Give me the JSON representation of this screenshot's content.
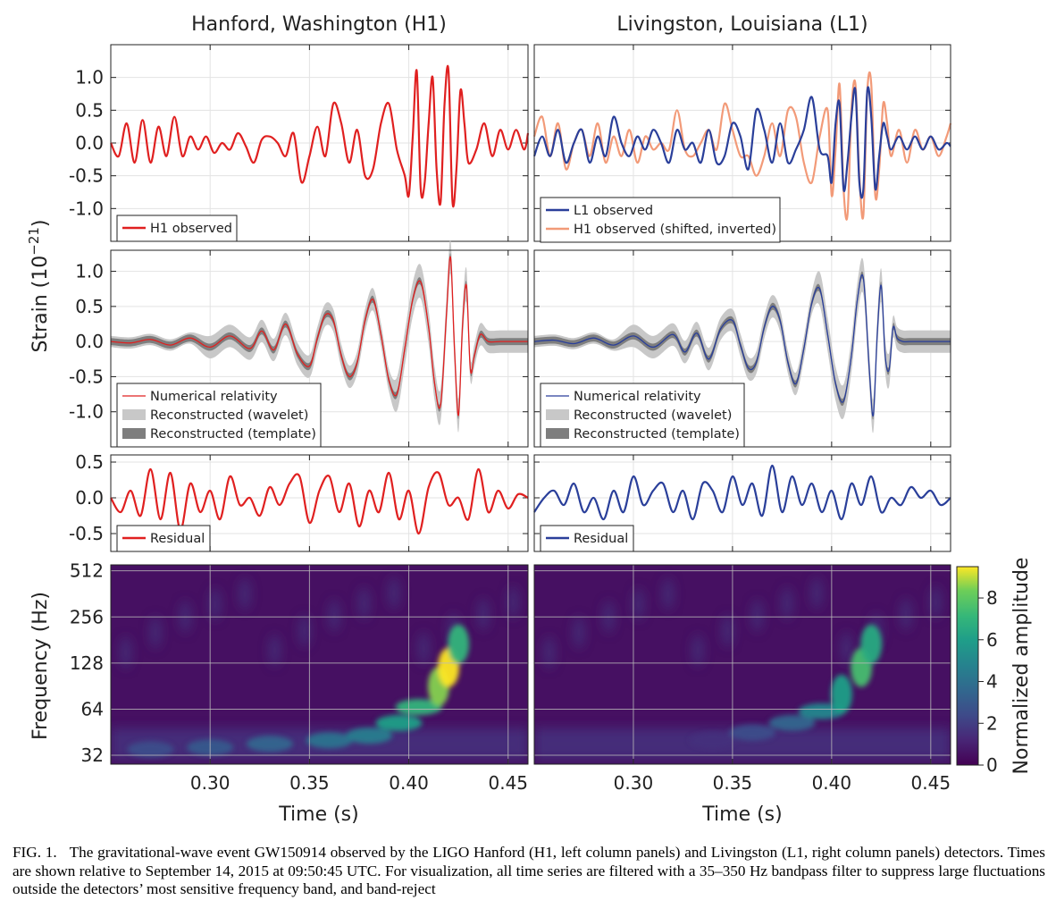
{
  "figure": {
    "column_titles": [
      "Hanford, Washington (H1)",
      "Livingston, Louisiana (L1)"
    ],
    "strain_ylabel": "Strain (10^-21)",
    "strain_ylabel_base": "Strain (10",
    "strain_ylabel_exp": "−21",
    "freq_ylabel": "Frequency (Hz)",
    "xlabel": "Time (s)",
    "colorbar_label": "Normalized amplitude",
    "colorbar_ticks": [
      "0",
      "2",
      "4",
      "6",
      "8"
    ],
    "colors": {
      "h1": "#e02020",
      "l1": "#2a3f9a",
      "h1_shifted": "#f29a78",
      "wavelet": "#c8c8c8",
      "template": "#7e7e7e"
    }
  },
  "chart_data": [
    {
      "type": "line",
      "panel": "H1 observed",
      "xlim": [
        0.25,
        0.46
      ],
      "ylim": [
        -1.5,
        1.5
      ],
      "yticks": [
        "1.0",
        "0.5",
        "0.0",
        "-0.5",
        "-1.0"
      ],
      "ytick_values": [
        1.0,
        0.5,
        0.0,
        -0.5,
        -1.0
      ],
      "series": [
        {
          "name": "H1 observed",
          "x": [
            0.25,
            0.254,
            0.258,
            0.262,
            0.266,
            0.27,
            0.274,
            0.278,
            0.282,
            0.286,
            0.29,
            0.294,
            0.298,
            0.302,
            0.306,
            0.31,
            0.314,
            0.318,
            0.322,
            0.326,
            0.33,
            0.334,
            0.338,
            0.342,
            0.346,
            0.35,
            0.354,
            0.358,
            0.362,
            0.366,
            0.37,
            0.374,
            0.378,
            0.382,
            0.386,
            0.39,
            0.394,
            0.398,
            0.4,
            0.402,
            0.404,
            0.406,
            0.408,
            0.41,
            0.412,
            0.414,
            0.416,
            0.418,
            0.42,
            0.422,
            0.424,
            0.426,
            0.428,
            0.43,
            0.434,
            0.438,
            0.442,
            0.446,
            0.45,
            0.454,
            0.458,
            0.46
          ],
          "y": [
            0.0,
            -0.2,
            0.3,
            -0.3,
            0.35,
            -0.3,
            0.25,
            -0.2,
            0.4,
            -0.2,
            0.1,
            -0.1,
            0.1,
            -0.15,
            0.0,
            -0.1,
            0.15,
            -0.05,
            -0.3,
            0.05,
            0.1,
            0.0,
            -0.2,
            0.15,
            -0.6,
            -0.2,
            0.25,
            -0.2,
            0.6,
            0.3,
            -0.3,
            0.2,
            -0.5,
            -0.4,
            0.3,
            0.6,
            -0.1,
            -0.5,
            -0.8,
            0.1,
            1.1,
            -0.7,
            -0.6,
            0.3,
            1.0,
            -0.4,
            -0.9,
            0.6,
            1.1,
            -0.9,
            -0.4,
            0.8,
            0.3,
            -0.3,
            -0.1,
            0.3,
            -0.2,
            0.2,
            -0.1,
            0.2,
            -0.1,
            0.15
          ]
        }
      ]
    },
    {
      "type": "line",
      "panel": "L1 observed",
      "xlim": [
        0.25,
        0.46
      ],
      "ylim": [
        -1.5,
        1.5
      ],
      "series": [
        {
          "name": "L1 observed",
          "x": [
            0.25,
            0.254,
            0.258,
            0.262,
            0.266,
            0.27,
            0.274,
            0.278,
            0.282,
            0.286,
            0.29,
            0.294,
            0.298,
            0.302,
            0.306,
            0.31,
            0.314,
            0.318,
            0.322,
            0.326,
            0.33,
            0.334,
            0.338,
            0.342,
            0.346,
            0.35,
            0.354,
            0.358,
            0.362,
            0.366,
            0.37,
            0.374,
            0.378,
            0.382,
            0.386,
            0.39,
            0.394,
            0.398,
            0.4,
            0.402,
            0.404,
            0.406,
            0.408,
            0.41,
            0.412,
            0.414,
            0.416,
            0.418,
            0.42,
            0.422,
            0.424,
            0.426,
            0.428,
            0.43,
            0.434,
            0.438,
            0.442,
            0.446,
            0.45,
            0.454,
            0.458,
            0.46
          ],
          "y": [
            -0.2,
            0.1,
            -0.2,
            0.2,
            -0.3,
            0.0,
            0.2,
            -0.3,
            0.1,
            -0.2,
            0.4,
            0.0,
            -0.2,
            0.1,
            -0.1,
            0.2,
            0.0,
            -0.3,
            0.2,
            -0.1,
            0.0,
            -0.3,
            0.2,
            -0.3,
            -0.2,
            0.3,
            0.1,
            -0.4,
            0.5,
            0.2,
            -0.3,
            0.3,
            -0.3,
            -0.1,
            0.2,
            0.7,
            -0.1,
            -0.2,
            -0.6,
            0.3,
            0.6,
            -0.7,
            -0.3,
            0.4,
            0.8,
            -0.6,
            -0.7,
            0.8,
            0.4,
            -0.7,
            -0.2,
            0.3,
            0.1,
            -0.1,
            0.1,
            -0.1,
            0.1,
            -0.1,
            0.1,
            -0.1,
            0.0,
            -0.05
          ]
        },
        {
          "name": "H1 observed (shifted, inverted)",
          "x": [
            0.25,
            0.254,
            0.258,
            0.262,
            0.266,
            0.27,
            0.274,
            0.278,
            0.282,
            0.286,
            0.29,
            0.294,
            0.298,
            0.302,
            0.306,
            0.31,
            0.314,
            0.318,
            0.322,
            0.326,
            0.33,
            0.334,
            0.338,
            0.342,
            0.346,
            0.35,
            0.354,
            0.358,
            0.362,
            0.366,
            0.37,
            0.374,
            0.378,
            0.382,
            0.386,
            0.39,
            0.394,
            0.398,
            0.4,
            0.402,
            0.404,
            0.406,
            0.408,
            0.41,
            0.412,
            0.414,
            0.416,
            0.418,
            0.42,
            0.422,
            0.424,
            0.426,
            0.428,
            0.43,
            0.434,
            0.438,
            0.442,
            0.446,
            0.45,
            0.454,
            0.458,
            0.46
          ],
          "y": [
            0.1,
            0.4,
            -0.2,
            0.3,
            -0.4,
            0.0,
            0.2,
            -0.2,
            0.3,
            -0.3,
            0.1,
            -0.2,
            0.2,
            -0.3,
            0.1,
            -0.1,
            0.0,
            -0.1,
            0.5,
            -0.1,
            -0.2,
            0.0,
            0.2,
            -0.1,
            0.6,
            0.2,
            -0.2,
            -0.2,
            -0.5,
            -0.2,
            0.3,
            -0.2,
            0.5,
            0.4,
            -0.3,
            -0.6,
            0.1,
            0.5,
            -0.8,
            -0.1,
            0.9,
            -0.7,
            -1.1,
            0.5,
            0.9,
            -0.5,
            -1.1,
            0.8,
            0.9,
            -0.8,
            -0.4,
            0.6,
            0.3,
            -0.2,
            0.2,
            -0.3,
            0.2,
            -0.1,
            0.1,
            -0.2,
            0.1,
            0.3
          ]
        }
      ]
    },
    {
      "type": "line",
      "panel": "H1 reconstructed",
      "xlim": [
        0.25,
        0.46
      ],
      "ylim": [
        -1.5,
        1.3
      ],
      "yticks": [
        "1.0",
        "0.5",
        "0.0",
        "-0.5",
        "-1.0"
      ],
      "ytick_values": [
        1.0,
        0.5,
        0.0,
        -0.5,
        -1.0
      ],
      "series": [
        {
          "name": "Numerical relativity",
          "x": [
            0.25,
            0.26,
            0.27,
            0.28,
            0.29,
            0.3,
            0.31,
            0.32,
            0.326,
            0.332,
            0.338,
            0.344,
            0.35,
            0.354,
            0.358,
            0.362,
            0.366,
            0.37,
            0.374,
            0.378,
            0.382,
            0.386,
            0.39,
            0.394,
            0.398,
            0.402,
            0.406,
            0.41,
            0.413,
            0.416,
            0.419,
            0.421,
            0.423,
            0.425,
            0.427,
            0.429,
            0.431,
            0.433,
            0.436,
            0.44,
            0.446,
            0.452,
            0.46
          ],
          "y": [
            0.0,
            -0.02,
            0.03,
            -0.05,
            0.05,
            -0.08,
            0.08,
            -0.1,
            0.15,
            -0.12,
            0.25,
            -0.18,
            -0.35,
            0.05,
            0.38,
            0.3,
            -0.2,
            -0.5,
            -0.3,
            0.3,
            0.6,
            0.1,
            -0.55,
            -0.75,
            -0.1,
            0.6,
            0.85,
            0.2,
            -0.6,
            -0.9,
            0.4,
            1.2,
            -0.1,
            -1.05,
            0.2,
            0.8,
            -0.4,
            -0.2,
            0.1,
            0.0,
            0.0,
            0.0,
            0.0
          ]
        }
      ]
    },
    {
      "type": "line",
      "panel": "L1 reconstructed",
      "xlim": [
        0.25,
        0.46
      ],
      "ylim": [
        -1.5,
        1.3
      ],
      "series": [
        {
          "name": "Numerical relativity",
          "x": [
            0.25,
            0.26,
            0.27,
            0.28,
            0.29,
            0.3,
            0.31,
            0.32,
            0.326,
            0.332,
            0.338,
            0.344,
            0.35,
            0.354,
            0.358,
            0.362,
            0.366,
            0.37,
            0.374,
            0.378,
            0.382,
            0.386,
            0.39,
            0.394,
            0.398,
            0.402,
            0.406,
            0.41,
            0.413,
            0.416,
            0.419,
            0.421,
            0.423,
            0.425,
            0.427,
            0.429,
            0.431,
            0.433,
            0.436,
            0.44,
            0.446,
            0.452,
            0.46
          ],
          "y": [
            0.0,
            0.02,
            -0.03,
            0.05,
            -0.05,
            0.08,
            -0.08,
            0.1,
            -0.15,
            0.12,
            -0.25,
            0.18,
            0.3,
            -0.05,
            -0.38,
            -0.3,
            0.2,
            0.5,
            0.3,
            -0.3,
            -0.6,
            -0.1,
            0.55,
            0.75,
            0.1,
            -0.6,
            -0.85,
            -0.2,
            0.6,
            0.9,
            -0.4,
            -1.05,
            0.1,
            0.8,
            -0.2,
            -0.4,
            0.2,
            0.05,
            0.0,
            0.0,
            0.0,
            0.0,
            0.0
          ]
        }
      ]
    },
    {
      "type": "line",
      "panel": "H1 residual",
      "xlim": [
        0.25,
        0.46
      ],
      "ylim": [
        -0.75,
        0.6
      ],
      "yticks": [
        "0.5",
        "0.0",
        "-0.5"
      ],
      "ytick_values": [
        0.5,
        0.0,
        -0.5
      ],
      "series": [
        {
          "name": "Residual",
          "x": [
            0.25,
            0.255,
            0.26,
            0.265,
            0.27,
            0.275,
            0.28,
            0.285,
            0.29,
            0.295,
            0.3,
            0.305,
            0.31,
            0.315,
            0.32,
            0.325,
            0.33,
            0.335,
            0.34,
            0.345,
            0.35,
            0.355,
            0.36,
            0.365,
            0.37,
            0.375,
            0.38,
            0.385,
            0.39,
            0.395,
            0.4,
            0.405,
            0.41,
            0.415,
            0.42,
            0.425,
            0.43,
            0.435,
            0.44,
            0.445,
            0.45,
            0.455,
            0.46
          ],
          "y": [
            0.0,
            -0.2,
            0.1,
            -0.25,
            0.4,
            -0.3,
            0.35,
            -0.45,
            0.2,
            -0.2,
            0.1,
            -0.3,
            0.3,
            -0.1,
            0.0,
            -0.25,
            0.15,
            -0.1,
            0.2,
            0.3,
            -0.35,
            0.1,
            0.3,
            -0.2,
            0.2,
            -0.4,
            0.1,
            -0.2,
            0.35,
            -0.3,
            0.1,
            -0.5,
            0.15,
            0.35,
            -0.1,
            0.0,
            -0.3,
            0.4,
            -0.2,
            0.1,
            -0.15,
            0.05,
            0.0
          ]
        }
      ]
    },
    {
      "type": "line",
      "panel": "L1 residual",
      "xlim": [
        0.25,
        0.46
      ],
      "ylim": [
        -0.75,
        0.6
      ],
      "series": [
        {
          "name": "Residual",
          "x": [
            0.25,
            0.255,
            0.26,
            0.265,
            0.27,
            0.275,
            0.28,
            0.285,
            0.29,
            0.295,
            0.3,
            0.305,
            0.31,
            0.315,
            0.32,
            0.325,
            0.33,
            0.335,
            0.34,
            0.345,
            0.35,
            0.355,
            0.36,
            0.365,
            0.37,
            0.375,
            0.38,
            0.385,
            0.39,
            0.395,
            0.4,
            0.405,
            0.41,
            0.415,
            0.42,
            0.425,
            0.43,
            0.435,
            0.44,
            0.445,
            0.45,
            0.455,
            0.46
          ],
          "y": [
            -0.2,
            0.0,
            0.1,
            -0.1,
            0.2,
            -0.2,
            0.0,
            -0.3,
            0.1,
            -0.2,
            0.3,
            -0.1,
            0.1,
            0.2,
            -0.2,
            0.1,
            -0.3,
            0.2,
            0.1,
            -0.2,
            0.3,
            -0.1,
            0.2,
            -0.25,
            0.45,
            -0.2,
            0.3,
            -0.1,
            0.2,
            -0.2,
            0.1,
            -0.3,
            0.2,
            -0.1,
            0.3,
            -0.2,
            0.0,
            -0.1,
            0.15,
            0.0,
            0.1,
            -0.1,
            0.0
          ]
        }
      ]
    },
    {
      "type": "heatmap",
      "panel": "H1 spectrogram",
      "xlim": [
        0.25,
        0.46
      ],
      "yscale": "log2",
      "yticks": [
        "512",
        "256",
        "128",
        "64",
        "32"
      ],
      "ytick_values": [
        512,
        256,
        128,
        64,
        32
      ],
      "ylim": [
        28,
        560
      ],
      "zlim": [
        0,
        9.5
      ],
      "chirp": {
        "t": [
          0.27,
          0.3,
          0.33,
          0.36,
          0.38,
          0.395,
          0.405,
          0.415,
          0.42,
          0.425
        ],
        "f": [
          35,
          36,
          38,
          40,
          43,
          52,
          66,
          90,
          120,
          170
        ],
        "amp": [
          2.5,
          3.0,
          3.5,
          4.0,
          4.5,
          6.0,
          7.0,
          8.5,
          9.5,
          7.0
        ]
      }
    },
    {
      "type": "heatmap",
      "panel": "L1 spectrogram",
      "xlim": [
        0.25,
        0.46
      ],
      "yscale": "log2",
      "ylim": [
        28,
        560
      ],
      "zlim": [
        0,
        9.5
      ],
      "chirp": {
        "t": [
          0.34,
          0.36,
          0.38,
          0.395,
          0.405,
          0.415,
          0.42
        ],
        "f": [
          40,
          45,
          52,
          62,
          80,
          120,
          170
        ],
        "amp": [
          1.5,
          2.5,
          3.5,
          5.0,
          6.0,
          7.5,
          6.5
        ]
      }
    }
  ],
  "legends": {
    "h1_observed": [
      "H1 observed"
    ],
    "l1_observed": [
      "L1 observed",
      "H1 observed (shifted, inverted)"
    ],
    "reconstructed": [
      "Numerical relativity",
      "Reconstructed (wavelet)",
      "Reconstructed (template)"
    ],
    "residual": [
      "Residual"
    ]
  },
  "xticks": [
    "0.30",
    "0.35",
    "0.40",
    "0.45"
  ],
  "xtick_values": [
    0.3,
    0.35,
    0.4,
    0.45
  ],
  "caption": {
    "label": "FIG. 1.",
    "text": "The gravitational-wave event GW150914 observed by the LIGO Hanford (H1, left column panels) and Livingston (L1, right column panels) detectors. Times are shown relative to September 14, 2015 at 09:50:45 UTC. For visualization, all time series are filtered with a 35–350 Hz bandpass filter to suppress large fluctuations outside the detectors’ most sensitive frequency band, and band-reject"
  }
}
